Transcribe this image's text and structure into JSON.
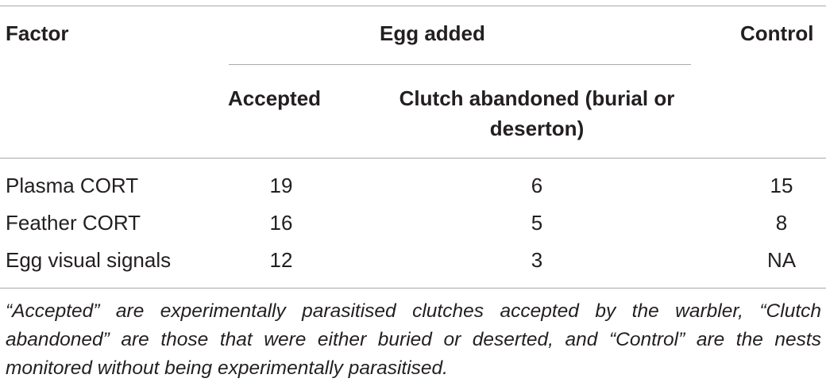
{
  "header": {
    "factor": "Factor",
    "egg_added": "Egg added",
    "control": "Control",
    "accepted": "Accepted",
    "clutch_abandoned": "Clutch abandoned (burial or deserton)"
  },
  "rows": [
    {
      "factor": "Plasma CORT",
      "accepted": "19",
      "abandoned": "6",
      "control": "15"
    },
    {
      "factor": "Feather CORT",
      "accepted": "16",
      "abandoned": "5",
      "control": "8"
    },
    {
      "factor": "Egg visual signals",
      "accepted": "12",
      "abandoned": "3",
      "control": "NA"
    }
  ],
  "footnote": "“Accepted” are experimentally parasitised clutches accepted by the warbler, “Clutch abandoned” are those that were either buried or deserted, and “Control” are the nests monitored without being experimentally parasitised."
}
